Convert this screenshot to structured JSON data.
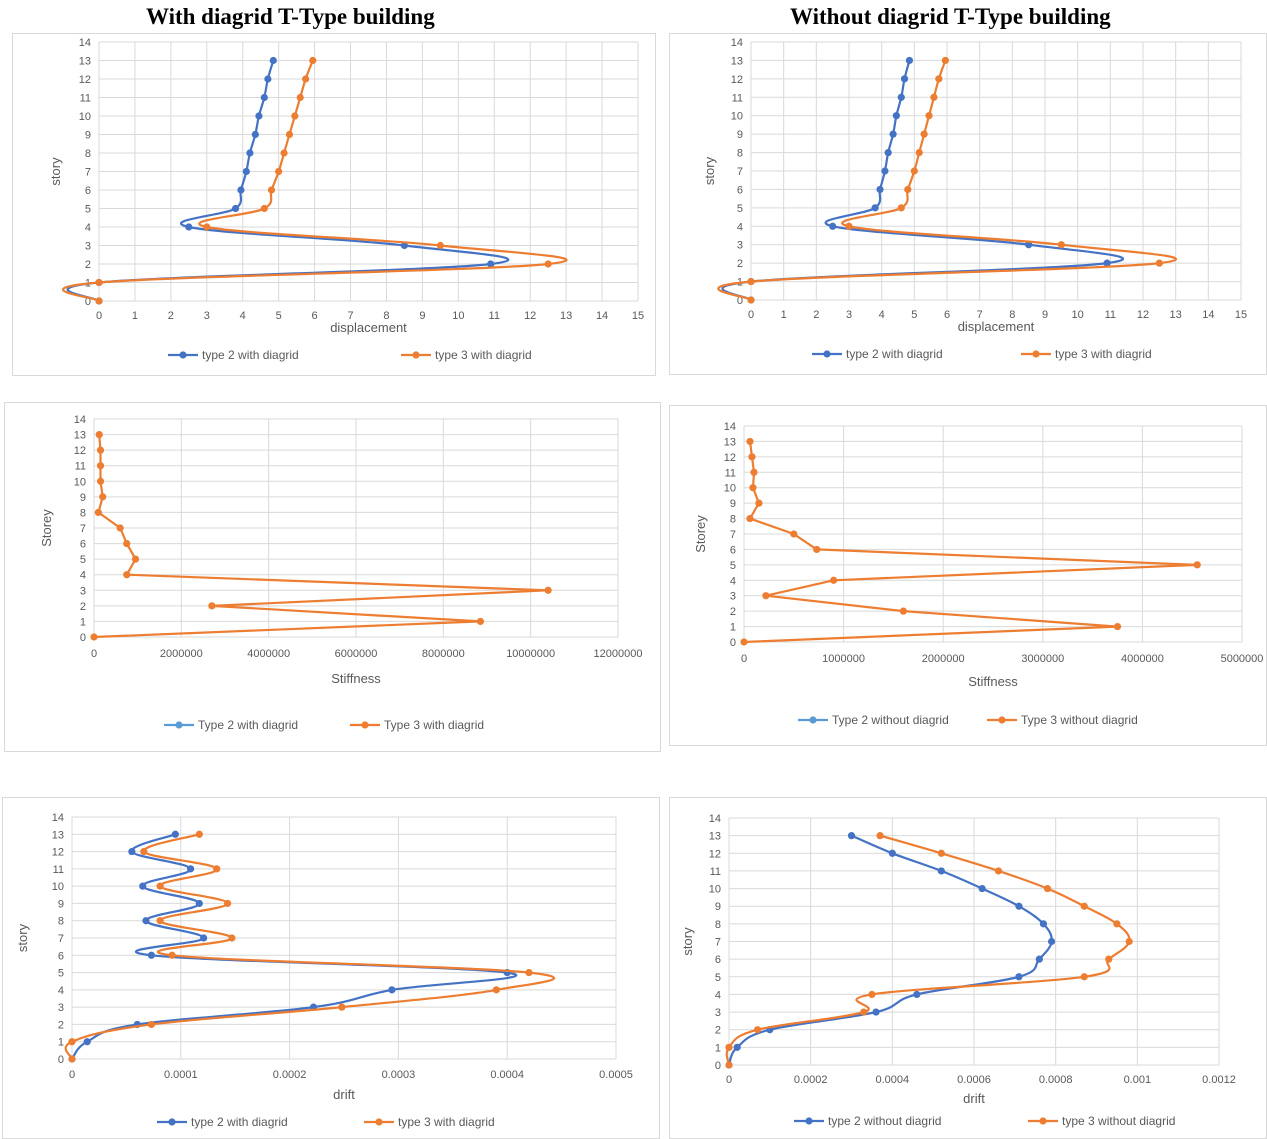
{
  "headings": {
    "left": "With diagrid T-Type building",
    "right": "Without diagrid T-Type building"
  },
  "colors": {
    "blue": "#4472C4",
    "orange": "#ED7D31",
    "lightblue": "#5B9BD5",
    "grid": "#d9d9d9",
    "text": "#595959"
  },
  "chart_data": [
    {
      "id": "disp-with",
      "type": "line",
      "xlabel": "displacement",
      "ylabel": "story",
      "xlim": [
        0,
        15
      ],
      "xticks": [
        0,
        1,
        2,
        3,
        4,
        5,
        6,
        7,
        8,
        9,
        10,
        11,
        12,
        13,
        14,
        15
      ],
      "ylim": [
        0,
        14
      ],
      "yticks": [
        0,
        1,
        2,
        3,
        4,
        5,
        6,
        7,
        8,
        9,
        10,
        11,
        12,
        13,
        14
      ],
      "grid": true,
      "legend": "bottom",
      "series": [
        {
          "name": "type 2 with diagrid",
          "color": "blue",
          "smooth": true,
          "points": [
            [
              0,
              0
            ],
            [
              0,
              1
            ],
            [
              10.9,
              2
            ],
            [
              8.5,
              3
            ],
            [
              2.5,
              4
            ],
            [
              3.8,
              5
            ],
            [
              3.95,
              6
            ],
            [
              4.1,
              7
            ],
            [
              4.2,
              8
            ],
            [
              4.35,
              9
            ],
            [
              4.45,
              10
            ],
            [
              4.6,
              11
            ],
            [
              4.7,
              12
            ],
            [
              4.85,
              13
            ]
          ]
        },
        {
          "name": "type 3 with diagrid",
          "color": "orange",
          "smooth": true,
          "points": [
            [
              0,
              0
            ],
            [
              0,
              1
            ],
            [
              12.5,
              2
            ],
            [
              9.5,
              3
            ],
            [
              3.0,
              4
            ],
            [
              4.6,
              5
            ],
            [
              4.8,
              6
            ],
            [
              5.0,
              7
            ],
            [
              5.15,
              8
            ],
            [
              5.3,
              9
            ],
            [
              5.45,
              10
            ],
            [
              5.6,
              11
            ],
            [
              5.75,
              12
            ],
            [
              5.95,
              13
            ]
          ]
        }
      ]
    },
    {
      "id": "disp-without",
      "type": "line",
      "xlabel": "displacement",
      "ylabel": "story",
      "xlim": [
        0,
        15
      ],
      "xticks": [
        0,
        1,
        2,
        3,
        4,
        5,
        6,
        7,
        8,
        9,
        10,
        11,
        12,
        13,
        14,
        15
      ],
      "ylim": [
        0,
        14
      ],
      "yticks": [
        0,
        1,
        2,
        3,
        4,
        5,
        6,
        7,
        8,
        9,
        10,
        11,
        12,
        13,
        14
      ],
      "grid": true,
      "legend": "bottom",
      "series": [
        {
          "name": "type 2 with diagrid",
          "color": "blue",
          "smooth": true,
          "points": [
            [
              0,
              0
            ],
            [
              0,
              1
            ],
            [
              10.9,
              2
            ],
            [
              8.5,
              3
            ],
            [
              2.5,
              4
            ],
            [
              3.8,
              5
            ],
            [
              3.95,
              6
            ],
            [
              4.1,
              7
            ],
            [
              4.2,
              8
            ],
            [
              4.35,
              9
            ],
            [
              4.45,
              10
            ],
            [
              4.6,
              11
            ],
            [
              4.7,
              12
            ],
            [
              4.85,
              13
            ]
          ]
        },
        {
          "name": "type 3 with diagrid",
          "color": "orange",
          "smooth": true,
          "points": [
            [
              0,
              0
            ],
            [
              0,
              1
            ],
            [
              12.5,
              2
            ],
            [
              9.5,
              3
            ],
            [
              3.0,
              4
            ],
            [
              4.6,
              5
            ],
            [
              4.8,
              6
            ],
            [
              5.0,
              7
            ],
            [
              5.15,
              8
            ],
            [
              5.3,
              9
            ],
            [
              5.45,
              10
            ],
            [
              5.6,
              11
            ],
            [
              5.75,
              12
            ],
            [
              5.95,
              13
            ]
          ]
        }
      ]
    },
    {
      "id": "stiff-with",
      "type": "line",
      "xlabel": "Stiffness",
      "ylabel": "Storey",
      "xlim": [
        0,
        12000000
      ],
      "xticks": [
        0,
        2000000,
        4000000,
        6000000,
        8000000,
        10000000,
        12000000
      ],
      "ylim": [
        0,
        14
      ],
      "yticks": [
        0,
        1,
        2,
        3,
        4,
        5,
        6,
        7,
        8,
        9,
        10,
        11,
        12,
        13,
        14
      ],
      "grid": true,
      "legend": "bottom",
      "series": [
        {
          "name": "Type 2 with diagrid",
          "color": "lightblue",
          "smooth": false,
          "points": []
        },
        {
          "name": "Type 3 with diagrid",
          "color": "orange",
          "smooth": false,
          "points": [
            [
              0,
              0
            ],
            [
              8850000,
              1
            ],
            [
              2700000,
              2
            ],
            [
              10400000,
              3
            ],
            [
              750000,
              4
            ],
            [
              950000,
              5
            ],
            [
              750000,
              6
            ],
            [
              600000,
              7
            ],
            [
              100000,
              8
            ],
            [
              200000,
              9
            ],
            [
              150000,
              10
            ],
            [
              150000,
              11
            ],
            [
              150000,
              12
            ],
            [
              120000,
              13
            ]
          ]
        }
      ]
    },
    {
      "id": "stiff-without",
      "type": "line",
      "xlabel": "Stiffness",
      "ylabel": "Storey",
      "xlim": [
        0,
        5000000
      ],
      "xticks": [
        0,
        1000000,
        2000000,
        3000000,
        4000000,
        5000000
      ],
      "ylim": [
        0,
        14
      ],
      "yticks": [
        0,
        1,
        2,
        3,
        4,
        5,
        6,
        7,
        8,
        9,
        10,
        11,
        12,
        13,
        14
      ],
      "grid": true,
      "legend": "bottom",
      "series": [
        {
          "name": "Type 2 without diagrid",
          "color": "lightblue",
          "smooth": false,
          "points": []
        },
        {
          "name": "Type 3 without diagrid",
          "color": "orange",
          "smooth": false,
          "points": [
            [
              0,
              0
            ],
            [
              3750000,
              1
            ],
            [
              1600000,
              2
            ],
            [
              220000,
              3
            ],
            [
              900000,
              4
            ],
            [
              4550000,
              5
            ],
            [
              730000,
              6
            ],
            [
              500000,
              7
            ],
            [
              60000,
              8
            ],
            [
              150000,
              9
            ],
            [
              90000,
              10
            ],
            [
              100000,
              11
            ],
            [
              80000,
              12
            ],
            [
              60000,
              13
            ]
          ]
        }
      ]
    },
    {
      "id": "drift-with",
      "type": "line",
      "xlabel": "drift",
      "ylabel": "story",
      "xlim": [
        0,
        0.0005
      ],
      "xticks": [
        0,
        0.0001,
        0.0002,
        0.0003,
        0.0004,
        0.0005
      ],
      "ylim": [
        0,
        14
      ],
      "yticks": [
        0,
        1,
        2,
        3,
        4,
        5,
        6,
        7,
        8,
        9,
        10,
        11,
        12,
        13,
        14
      ],
      "grid": true,
      "legend": "bottom",
      "series": [
        {
          "name": "type 2 with diagrid",
          "color": "blue",
          "smooth": true,
          "points": [
            [
              0,
              0
            ],
            [
              1.4e-05,
              1
            ],
            [
              6e-05,
              2
            ],
            [
              0.000222,
              3
            ],
            [
              0.000294,
              4
            ],
            [
              0.0004,
              5
            ],
            [
              7.3e-05,
              6
            ],
            [
              0.000121,
              7
            ],
            [
              6.8e-05,
              8
            ],
            [
              0.000117,
              9
            ],
            [
              6.5e-05,
              10
            ],
            [
              0.000109,
              11
            ],
            [
              5.5e-05,
              12
            ],
            [
              9.5e-05,
              13
            ]
          ]
        },
        {
          "name": "type 3 with diagrid",
          "color": "orange",
          "smooth": true,
          "points": [
            [
              0,
              0
            ],
            [
              0,
              1
            ],
            [
              7.3e-05,
              2
            ],
            [
              0.000248,
              3
            ],
            [
              0.00039,
              4
            ],
            [
              0.00042,
              5
            ],
            [
              9.2e-05,
              6
            ],
            [
              0.000147,
              7
            ],
            [
              8.1e-05,
              8
            ],
            [
              0.000143,
              9
            ],
            [
              8.1e-05,
              10
            ],
            [
              0.000133,
              11
            ],
            [
              6.6e-05,
              12
            ],
            [
              0.000117,
              13
            ]
          ]
        }
      ]
    },
    {
      "id": "drift-without",
      "type": "line",
      "xlabel": "drift",
      "ylabel": "story",
      "xlim": [
        0,
        0.0012
      ],
      "xticks": [
        0,
        0.0002,
        0.0004,
        0.0006,
        0.0008,
        0.001,
        0.0012
      ],
      "ylim": [
        0,
        14
      ],
      "yticks": [
        0,
        1,
        2,
        3,
        4,
        5,
        6,
        7,
        8,
        9,
        10,
        11,
        12,
        13,
        14
      ],
      "grid": true,
      "legend": "bottom",
      "series": [
        {
          "name": "type 2 without diagrid",
          "color": "blue",
          "smooth": true,
          "points": [
            [
              0,
              0
            ],
            [
              2e-05,
              1
            ],
            [
              0.0001,
              2
            ],
            [
              0.00036,
              3
            ],
            [
              0.00046,
              4
            ],
            [
              0.00071,
              5
            ],
            [
              0.00076,
              6
            ],
            [
              0.00079,
              7
            ],
            [
              0.00077,
              8
            ],
            [
              0.00071,
              9
            ],
            [
              0.00062,
              10
            ],
            [
              0.00052,
              11
            ],
            [
              0.0004,
              12
            ],
            [
              0.0003,
              13
            ]
          ]
        },
        {
          "name": "type 3 without diagrid",
          "color": "orange",
          "smooth": true,
          "points": [
            [
              0,
              0
            ],
            [
              0,
              1
            ],
            [
              7e-05,
              2
            ],
            [
              0.00033,
              3
            ],
            [
              0.00035,
              4
            ],
            [
              0.00087,
              5
            ],
            [
              0.00093,
              6
            ],
            [
              0.00098,
              7
            ],
            [
              0.00095,
              8
            ],
            [
              0.00087,
              9
            ],
            [
              0.00078,
              10
            ],
            [
              0.00066,
              11
            ],
            [
              0.00052,
              12
            ],
            [
              0.00037,
              13
            ]
          ]
        }
      ]
    }
  ]
}
